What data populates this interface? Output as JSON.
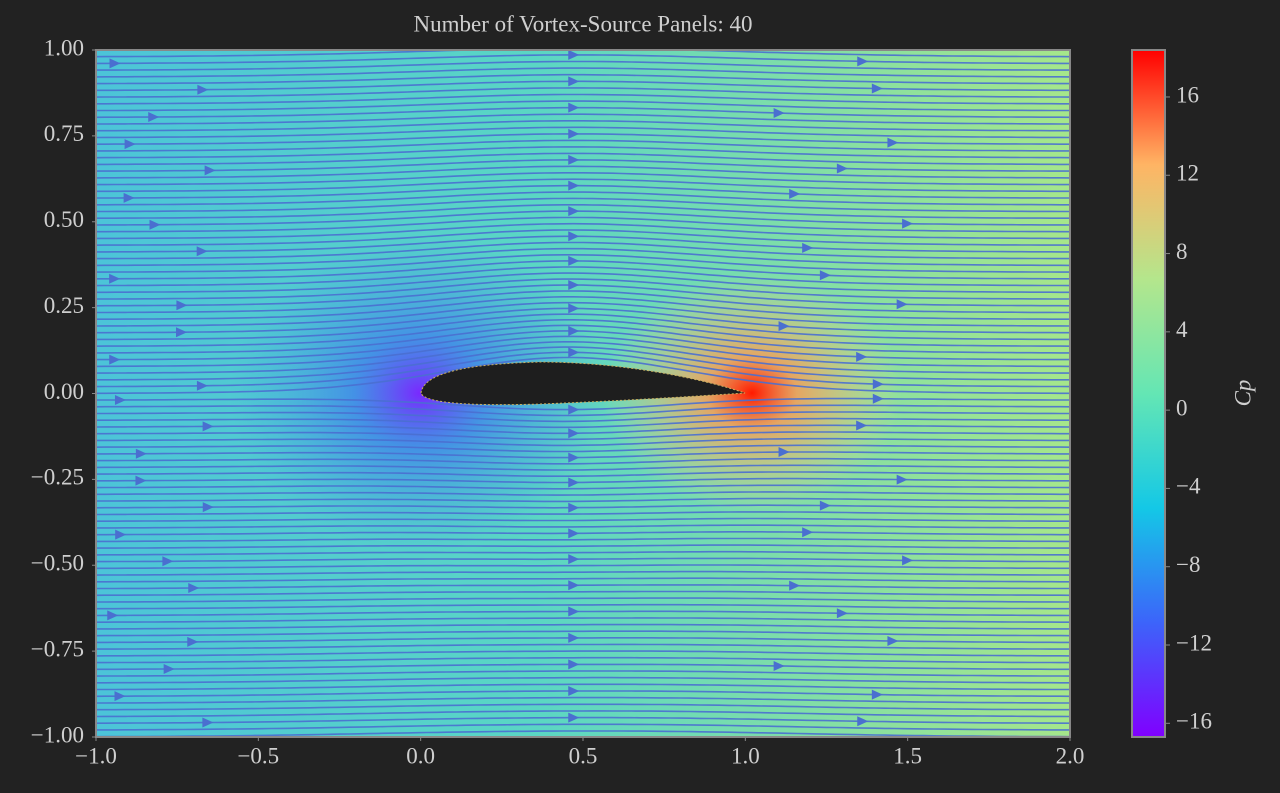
{
  "chart_data": {
    "type": "streamplot",
    "title": "Number of Vortex-Source Panels: 40",
    "xlim": [
      -1.0,
      2.0
    ],
    "ylim": [
      -1.0,
      1.0
    ],
    "xticks": [
      {
        "value": -1.0,
        "label": "−1.0"
      },
      {
        "value": -0.5,
        "label": "−0.5"
      },
      {
        "value": 0.0,
        "label": "0.0"
      },
      0.5,
      {
        "value": 1.0,
        "label": "1.0"
      },
      1.5,
      {
        "value": 2.0,
        "label": "2.0"
      }
    ],
    "yticks": [
      {
        "value": -1.0,
        "label": "−1.00"
      },
      {
        "value": -0.75,
        "label": "−0.75"
      },
      {
        "value": -0.5,
        "label": "−0.50"
      },
      {
        "value": -0.25,
        "label": "−0.25"
      },
      {
        "value": 0.0,
        "label": "0.00"
      },
      0.25,
      {
        "value": 0.5,
        "label": "0.50"
      },
      0.75,
      {
        "value": 1.0,
        "label": "1.00"
      }
    ],
    "streamline_color": "#4a6fd0",
    "colorbar": {
      "label": "Cp",
      "clim": [
        -16.7,
        18.4
      ],
      "ticks": [
        {
          "value": -16,
          "label": "−16"
        },
        {
          "value": -12,
          "label": "−12"
        },
        {
          "value": -8,
          "label": "−8"
        },
        {
          "value": -4,
          "label": "−4"
        },
        0,
        4,
        8,
        12,
        16
      ],
      "colors": [
        "#8000ff",
        "#3c64fa",
        "#14c8e6",
        "#64e6b4",
        "#b4e68c",
        "#ffb464",
        "#ff0000"
      ]
    }
  }
}
